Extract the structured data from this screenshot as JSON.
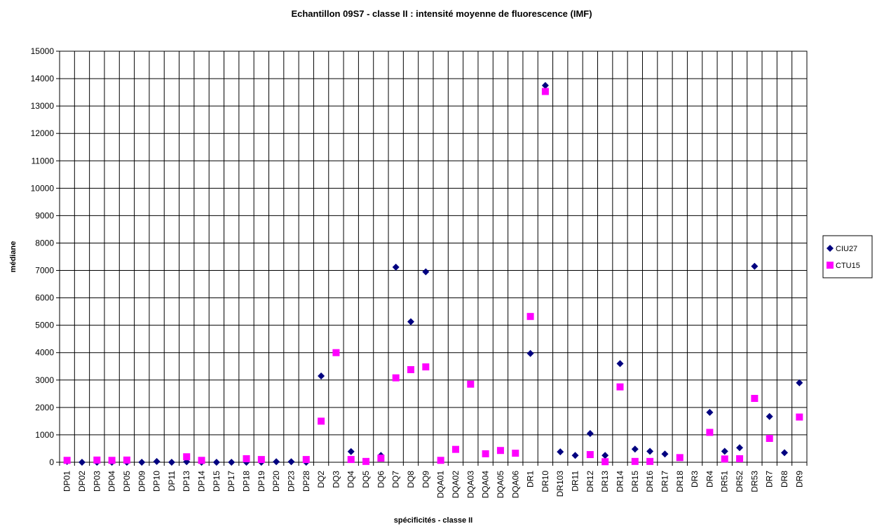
{
  "chart_data": {
    "type": "scatter",
    "title": "Echantillon 09S7 - classe II : intensité moyenne de fluorescence (IMF)",
    "x_label": "spécificités - classe II",
    "y_label": "médiane",
    "categories": [
      "DP01",
      "DP02",
      "DP03",
      "DP04",
      "DP05",
      "DP09",
      "DP10",
      "DP11",
      "DP13",
      "DP14",
      "DP15",
      "DP17",
      "DP18",
      "DP19",
      "DP20",
      "DP23",
      "DP28",
      "DQ2",
      "DQ3",
      "DQ4",
      "DQ5",
      "DQ6",
      "DQ7",
      "DQ8",
      "DQ9",
      "DQA01",
      "DQA02",
      "DQA03",
      "DQA04",
      "DQA05",
      "DQA06",
      "DR1",
      "DR10",
      "DR103",
      "DR11",
      "DR12",
      "DR13",
      "DR14",
      "DR15",
      "DR16",
      "DR17",
      "DR18",
      "DR3",
      "DR4",
      "DR51",
      "DR52",
      "DR53",
      "DR7",
      "DR8",
      "DR9"
    ],
    "series": [
      {
        "name": "CIU27",
        "color": "#000080",
        "marker": "diamond",
        "values": [
          30,
          0,
          0,
          0,
          0,
          0,
          30,
          0,
          20,
          0,
          0,
          0,
          0,
          0,
          20,
          20,
          0,
          3150,
          null,
          390,
          null,
          250,
          7120,
          5130,
          6950,
          null,
          null,
          null,
          null,
          null,
          null,
          3970,
          13750,
          380,
          250,
          1050,
          250,
          3600,
          480,
          400,
          300,
          null,
          null,
          1820,
          400,
          530,
          7150,
          1670,
          350,
          2900
        ]
      },
      {
        "name": "CTU15",
        "color": "#ff00ff",
        "marker": "square",
        "values": [
          70,
          null,
          80,
          70,
          80,
          null,
          null,
          null,
          200,
          70,
          null,
          null,
          130,
          100,
          null,
          null,
          100,
          1500,
          4000,
          100,
          30,
          150,
          3080,
          3380,
          3480,
          70,
          470,
          2850,
          310,
          430,
          330,
          5320,
          13530,
          null,
          null,
          280,
          20,
          2750,
          30,
          30,
          null,
          170,
          null,
          1090,
          120,
          130,
          2330,
          870,
          null,
          1650
        ]
      }
    ],
    "ylim": [
      0,
      15000
    ],
    "yticks": [
      0,
      1000,
      2000,
      3000,
      4000,
      5000,
      6000,
      7000,
      8000,
      9000,
      10000,
      11000,
      12000,
      13000,
      14000,
      15000
    ],
    "grid": true,
    "legend": "right"
  }
}
